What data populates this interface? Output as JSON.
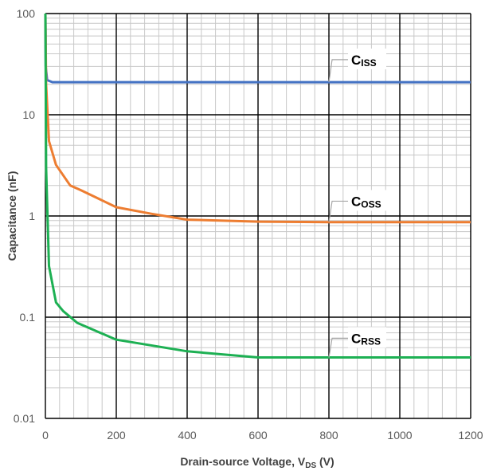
{
  "chart_data": {
    "type": "line",
    "xlabel": {
      "main": "Drain-source Voltage, V",
      "sub": "DS",
      "unit": " (V)"
    },
    "ylabel": "Capacitance (nF)",
    "xlim": [
      0,
      1200
    ],
    "ylim": [
      0.01,
      100
    ],
    "yscale": "log",
    "grid": {
      "major": true,
      "minor": true
    },
    "x_ticks": [
      "0",
      "200",
      "400",
      "600",
      "800",
      "1000",
      "1200"
    ],
    "y_ticks": [
      "0.01",
      "0.1",
      "1",
      "10",
      "100"
    ],
    "series": [
      {
        "name": "C",
        "name_sub": "ISS",
        "color": "#4472C4",
        "x": [
          0,
          1,
          5,
          20,
          100,
          200,
          400,
          600,
          800,
          1000,
          1200
        ],
        "y": [
          100,
          30,
          22,
          21,
          21,
          21,
          21,
          21,
          21,
          21,
          21
        ]
      },
      {
        "name": "C",
        "name_sub": "OSS",
        "color": "#ED7D31",
        "x": [
          0,
          2,
          10,
          30,
          70,
          100,
          200,
          300,
          400,
          600,
          800,
          1000,
          1200
        ],
        "y": [
          100,
          20,
          5.5,
          3.2,
          2.0,
          1.8,
          1.22,
          1.05,
          0.92,
          0.88,
          0.87,
          0.87,
          0.87
        ]
      },
      {
        "name": "C",
        "name_sub": "RSS",
        "color": "#1DB053",
        "x": [
          0,
          2,
          10,
          30,
          50,
          90,
          200,
          400,
          600,
          800,
          1000,
          1200
        ],
        "y": [
          100,
          3,
          0.32,
          0.14,
          0.115,
          0.088,
          0.06,
          0.046,
          0.04,
          0.04,
          0.04,
          0.04
        ]
      }
    ],
    "annotations": [
      {
        "series": 0,
        "x": 800,
        "y": 21,
        "label_y": 35
      },
      {
        "series": 1,
        "x": 800,
        "y": 0.87,
        "label_y": 1.4
      },
      {
        "series": 2,
        "x": 800,
        "y": 0.04,
        "label_y": 0.062
      }
    ]
  }
}
